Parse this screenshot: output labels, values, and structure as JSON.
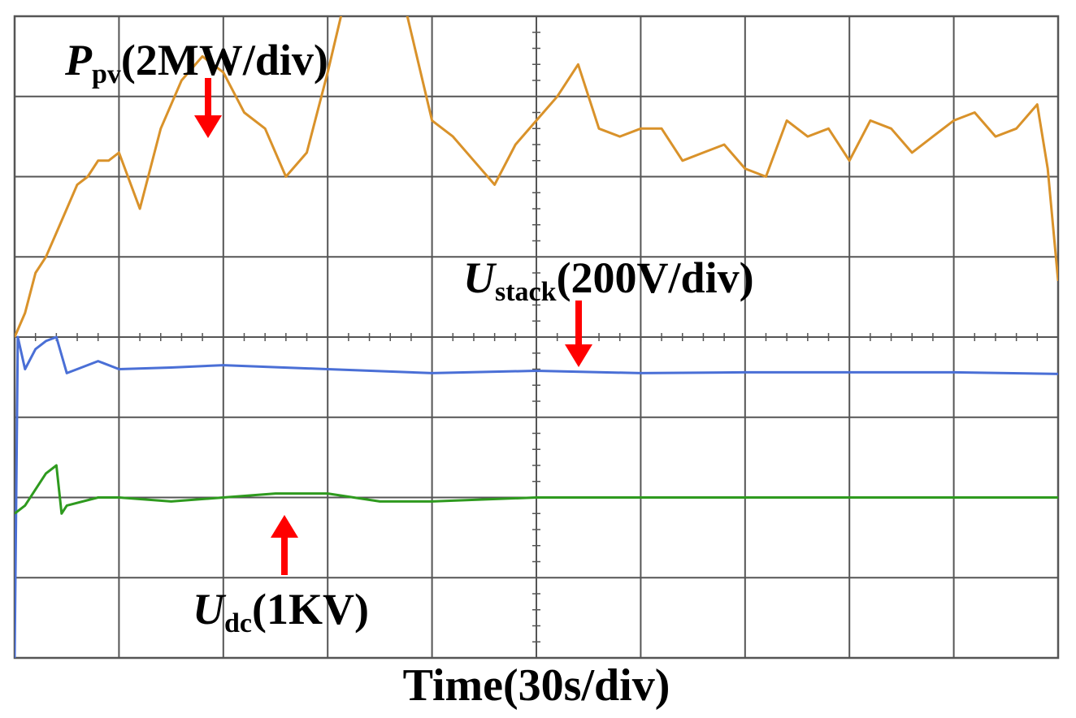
{
  "chart_data": {
    "type": "line",
    "xlabel": "Time(30s/div)",
    "grid": true,
    "divisions": {
      "x": 10,
      "y": 8
    },
    "colors": {
      "ppv": "#d9922a",
      "ustack": "#4a6fd6",
      "udc": "#2e9a1e",
      "arrow": "#ff0000",
      "grid": "#555555"
    },
    "annotations": {
      "ppv": {
        "symbol": "P",
        "sub": "pv",
        "scale": "(2MW/div)"
      },
      "ustack": {
        "symbol": "U",
        "sub": "stack",
        "scale": "(200V/div)"
      },
      "udc": {
        "symbol": "U",
        "sub": "dc",
        "scale": "(1KV)"
      }
    },
    "series": [
      {
        "id": "ppv",
        "color": "#d9922a",
        "x": [
          0.0,
          0.1,
          0.2,
          0.3,
          0.4,
          0.5,
          0.6,
          0.7,
          0.8,
          0.9,
          1.0,
          1.2,
          1.4,
          1.6,
          1.8,
          2.0,
          2.2,
          2.4,
          2.6,
          2.8,
          3.0,
          3.2,
          3.4,
          3.6,
          3.8,
          4.0,
          4.2,
          4.4,
          4.6,
          4.8,
          5.0,
          5.2,
          5.4,
          5.6,
          5.8,
          6.0,
          6.2,
          6.4,
          6.6,
          6.8,
          7.0,
          7.2,
          7.4,
          7.6,
          7.8,
          8.0,
          8.2,
          8.4,
          8.6,
          8.8,
          9.0,
          9.2,
          9.4,
          9.6,
          9.8,
          9.9,
          10.0
        ],
        "y": [
          4.0,
          4.3,
          4.8,
          5.0,
          5.3,
          5.6,
          5.9,
          6.0,
          6.2,
          6.2,
          6.3,
          5.6,
          6.6,
          7.2,
          7.5,
          7.3,
          6.8,
          6.6,
          6.0,
          6.3,
          7.3,
          8.4,
          8.8,
          8.9,
          7.8,
          6.7,
          6.5,
          6.2,
          5.9,
          6.4,
          6.7,
          7.0,
          7.4,
          6.6,
          6.5,
          6.6,
          6.6,
          6.2,
          6.3,
          6.4,
          6.1,
          6.0,
          6.7,
          6.5,
          6.6,
          6.2,
          6.7,
          6.6,
          6.3,
          6.5,
          6.7,
          6.8,
          6.5,
          6.6,
          6.9,
          6.1,
          4.7
        ]
      },
      {
        "id": "ustack",
        "color": "#4a6fd6",
        "x": [
          0.0,
          0.03,
          0.1,
          0.2,
          0.3,
          0.4,
          0.5,
          0.6,
          0.8,
          1.0,
          1.5,
          2.0,
          3.0,
          4.0,
          5.0,
          6.0,
          7.0,
          8.0,
          9.0,
          10.0
        ],
        "y": [
          0.0,
          4.0,
          3.6,
          3.85,
          3.95,
          4.0,
          3.55,
          3.6,
          3.7,
          3.6,
          3.62,
          3.65,
          3.6,
          3.55,
          3.58,
          3.55,
          3.56,
          3.56,
          3.56,
          3.54
        ]
      },
      {
        "id": "udc",
        "color": "#2e9a1e",
        "x": [
          0.0,
          0.1,
          0.2,
          0.3,
          0.4,
          0.45,
          0.5,
          0.8,
          1.0,
          1.5,
          2.0,
          2.5,
          3.0,
          3.5,
          4.0,
          5.0,
          6.0,
          7.0,
          8.0,
          9.0,
          10.0
        ],
        "y": [
          1.8,
          1.9,
          2.1,
          2.3,
          2.4,
          1.8,
          1.9,
          2.0,
          2.0,
          1.95,
          2.0,
          2.05,
          2.05,
          1.95,
          1.95,
          2.0,
          2.0,
          2.0,
          2.0,
          2.0,
          2.0
        ]
      }
    ]
  }
}
